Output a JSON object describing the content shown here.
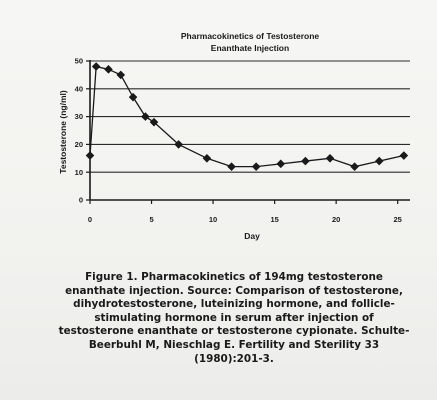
{
  "chart_data": {
    "type": "line",
    "title": [
      "Pharmacokinetics of Testosterone",
      "Enanthate Injection"
    ],
    "xlabel": "Day",
    "ylabel": "Testosterone (ng/ml)",
    "xlim": [
      0,
      26
    ],
    "ylim": [
      0,
      50
    ],
    "xticks": [
      0,
      5,
      10,
      15,
      20,
      25
    ],
    "yticks": [
      0,
      10,
      20,
      30,
      40,
      50
    ],
    "grid": "horizontal",
    "marker": "diamond",
    "series": [
      {
        "x": [
          0,
          0.5,
          1.5,
          2.5,
          3.5,
          4.5,
          5.2,
          7.2,
          9.5,
          11.5,
          13.5,
          15.5,
          17.5,
          19.5,
          21.5,
          23.5,
          25.5
        ],
        "values": [
          16,
          48,
          47,
          45,
          37,
          30,
          28,
          20,
          15,
          12,
          12,
          13,
          14,
          15,
          12,
          14,
          16
        ]
      }
    ]
  },
  "caption": {
    "lines": [
      "Figure 1. Pharmacokinetics of 194mg testosterone",
      "enanthate injection. Source: Comparison of testosterone,",
      "dihydrotestosterone, luteinizing hormone, and follicle-",
      "stimulating hormone in serum after injection of",
      "testosterone enanthate or testosterone cypionate. Schulte-",
      "Beerbuhl M, Nieschlag E. Fertility and Sterility 33",
      "(1980):201-3."
    ]
  }
}
